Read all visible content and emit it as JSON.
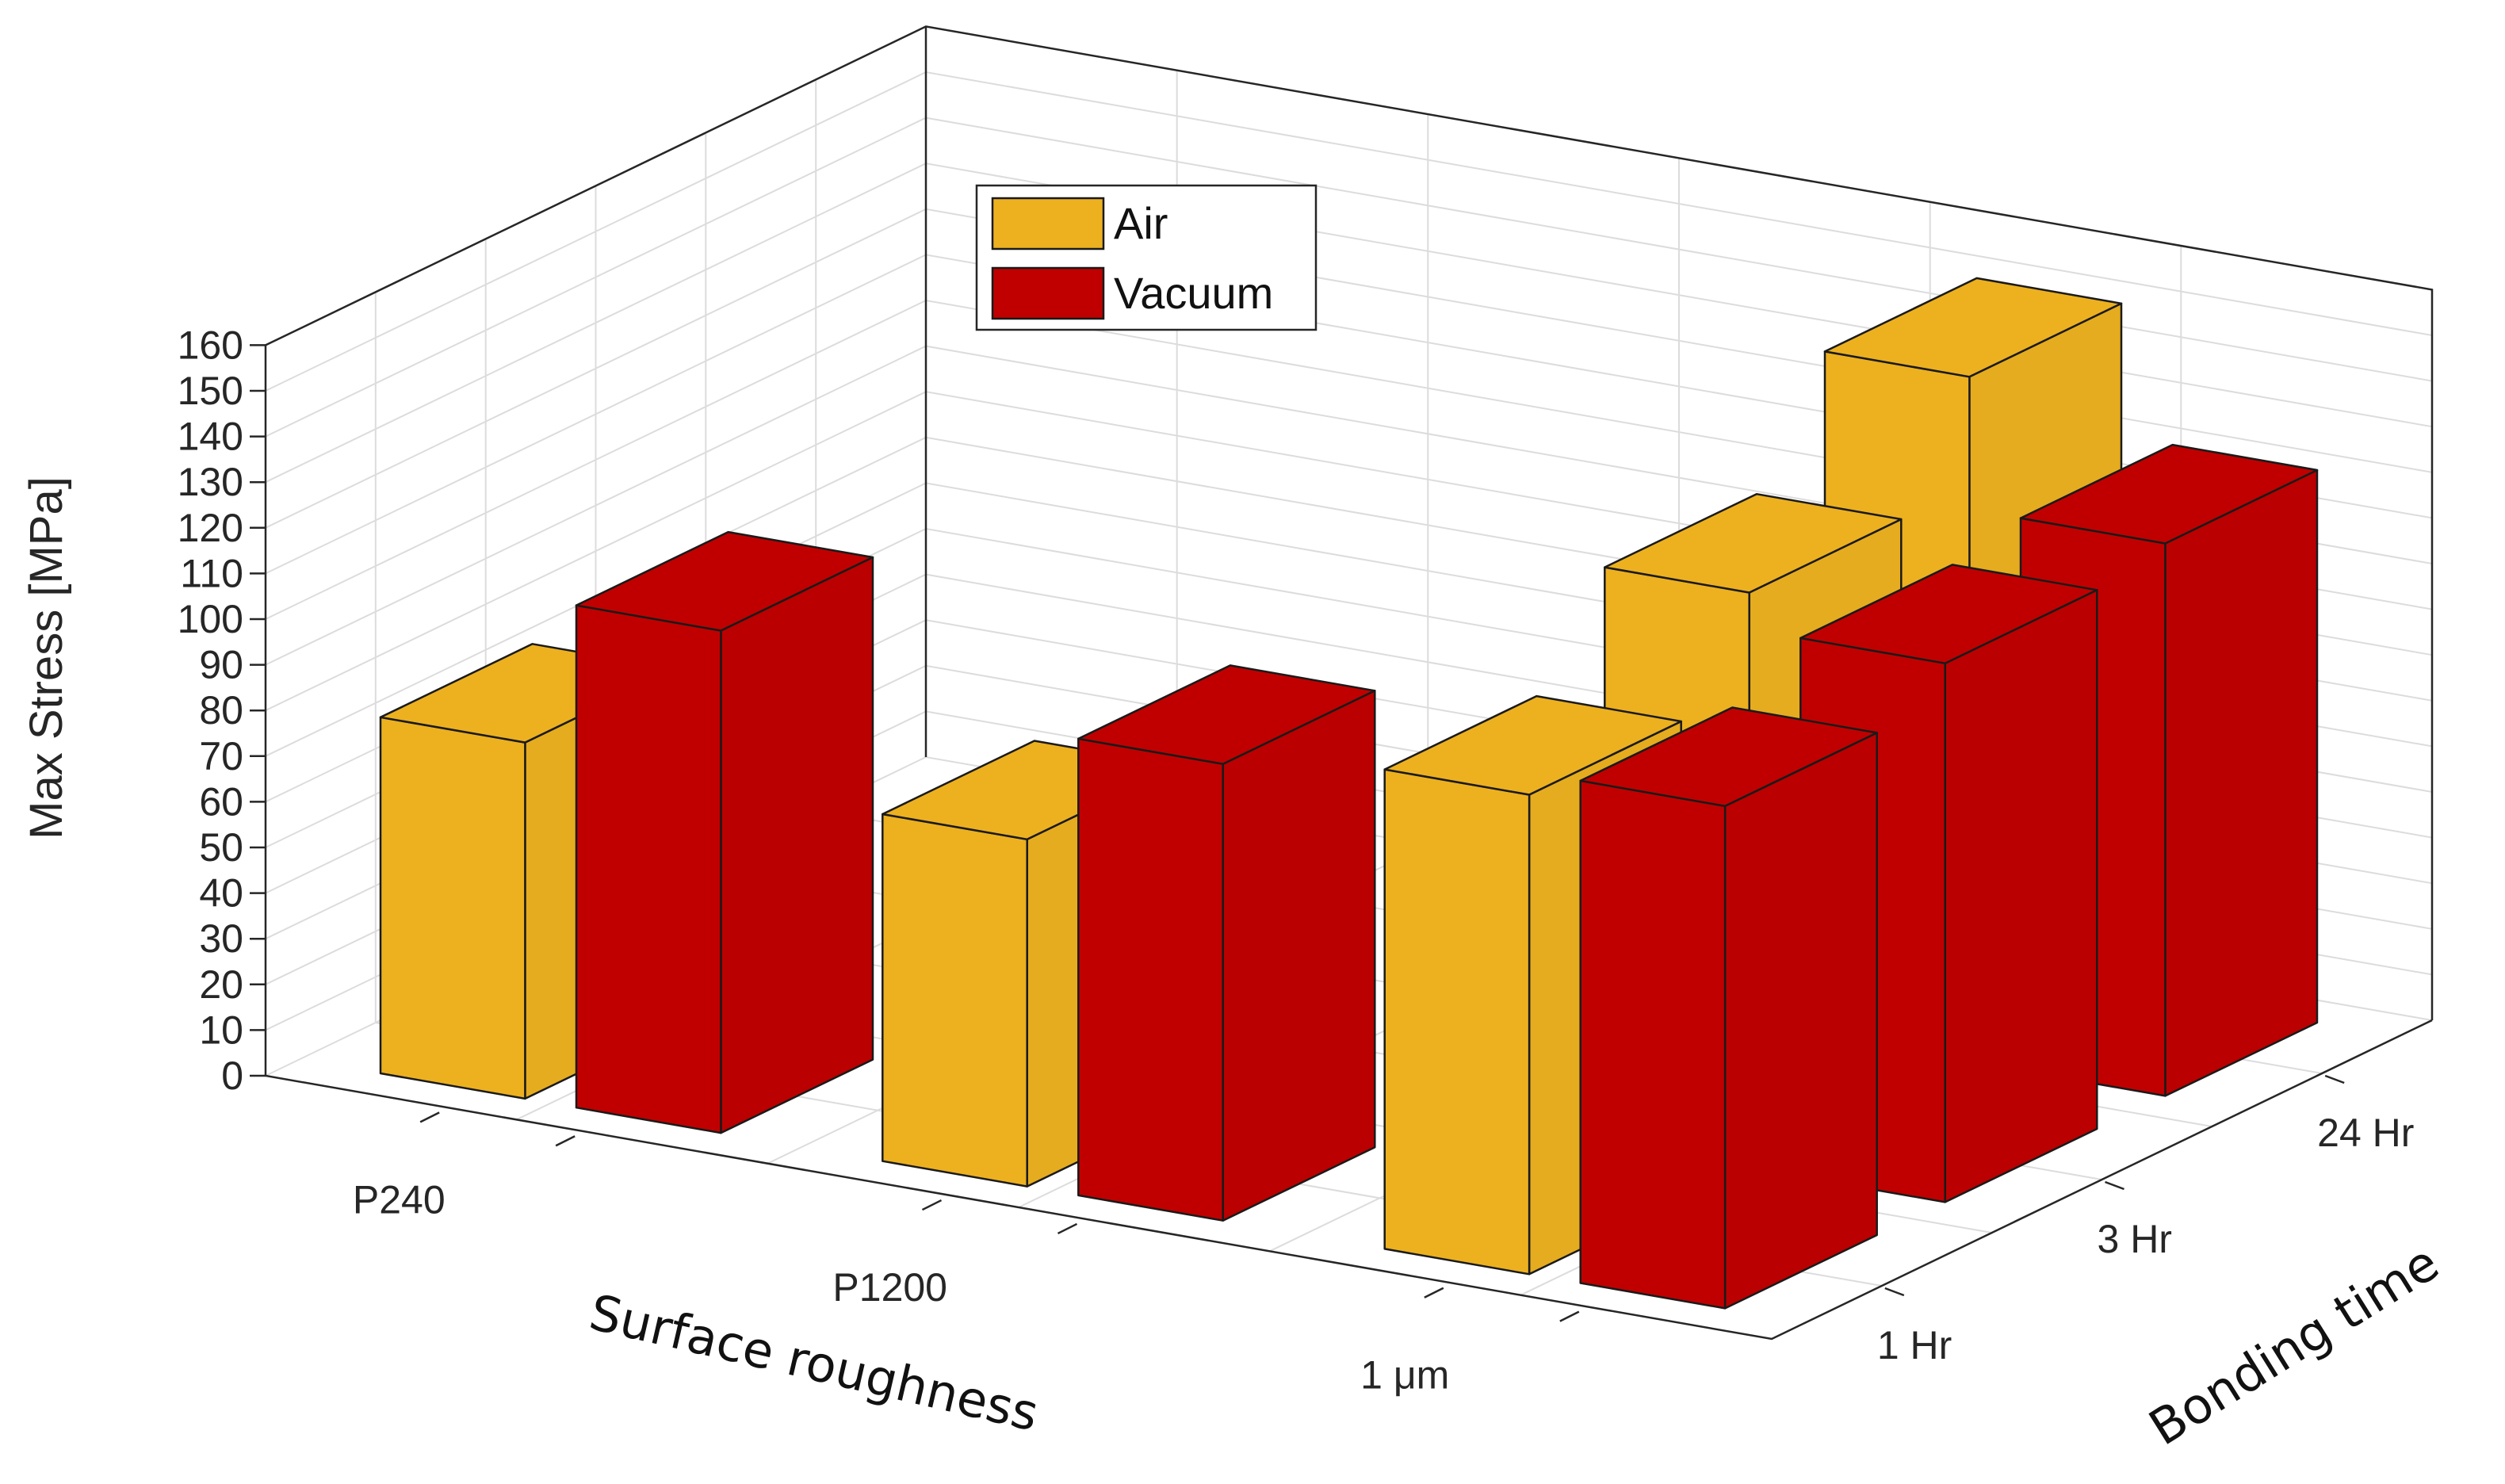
{
  "chart_data": {
    "type": "bar3d",
    "zlabel": "Max Stress [MPa]",
    "xlabel": "Surface roughness",
    "ylabel": "Bonding time",
    "zlim": [
      0,
      160
    ],
    "z_ticks": [
      "0",
      "10",
      "20",
      "30",
      "40",
      "50",
      "60",
      "70",
      "80",
      "90",
      "100",
      "110",
      "120",
      "130",
      "140",
      "150",
      "160"
    ],
    "x_categories": [
      "P240",
      "P1200",
      "1 μm"
    ],
    "y_categories": [
      "1 Hr",
      "3 Hr",
      "24 Hr"
    ],
    "legend": [
      "Air",
      "Vacuum"
    ],
    "legend_position": "top-left",
    "colors": {
      "Air": "#EDB120",
      "Vacuum": "#C00000"
    },
    "series": [
      {
        "name": "Air",
        "values": [
          {
            "x": "P240",
            "y": "1 Hr",
            "z": 78
          },
          {
            "x": "P1200",
            "y": "1 Hr",
            "z": 76
          },
          {
            "x": "1 μm",
            "y": "1 Hr",
            "z": 105
          },
          {
            "x": "1 μm",
            "y": "3 Hr",
            "z": 126
          },
          {
            "x": "1 μm",
            "y": "24 Hr",
            "z": 150
          }
        ]
      },
      {
        "name": "Vacuum",
        "values": [
          {
            "x": "P240",
            "y": "1 Hr",
            "z": 110
          },
          {
            "x": "P1200",
            "y": "1 Hr",
            "z": 100
          },
          {
            "x": "1 μm",
            "y": "1 Hr",
            "z": 110
          },
          {
            "x": "1 μm",
            "y": "3 Hr",
            "z": 118
          },
          {
            "x": "1 μm",
            "y": "24 Hr",
            "z": 121
          }
        ]
      }
    ]
  }
}
